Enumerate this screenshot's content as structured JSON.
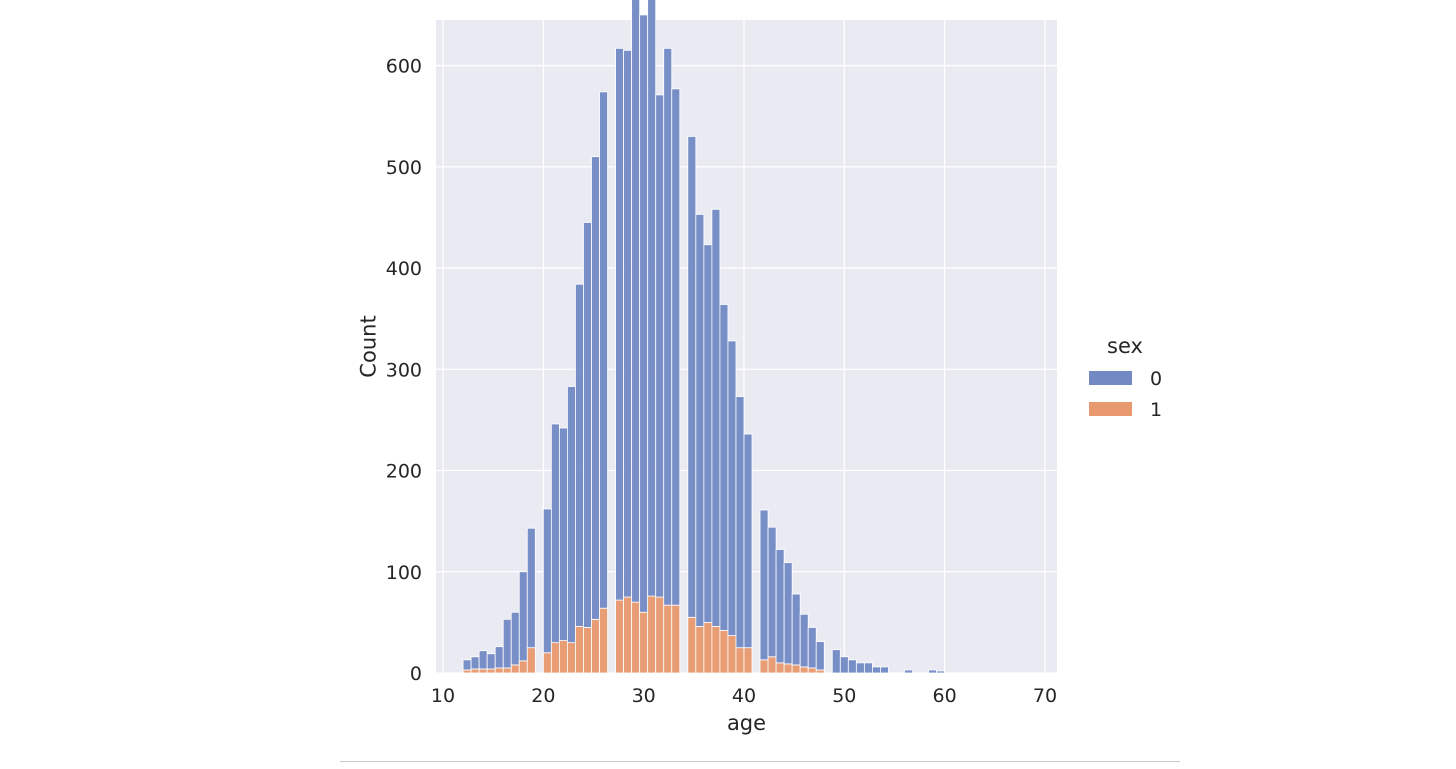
{
  "chart_data": {
    "type": "bar",
    "stacked": true,
    "xlabel": "age",
    "ylabel": "Count",
    "xlim": [
      9.3,
      71.2
    ],
    "ylim": [
      0,
      645
    ],
    "xticks": [
      10,
      20,
      30,
      40,
      50,
      60,
      70
    ],
    "yticks": [
      0,
      100,
      200,
      300,
      400,
      500,
      600
    ],
    "grid": true,
    "bin_start": 12,
    "bin_width": 0.8,
    "legend": {
      "title": "sex",
      "placement": "right",
      "entries": [
        {
          "label": "0",
          "color": "#7289c4"
        },
        {
          "label": "1",
          "color": "#e9996e"
        }
      ]
    },
    "series": [
      {
        "name": "1",
        "color": "#e9996e",
        "values": [
          3,
          4,
          4,
          4,
          5,
          5,
          8,
          12,
          25,
          0,
          20,
          30,
          32,
          30,
          46,
          45,
          53,
          64,
          0,
          72,
          75,
          70,
          60,
          76,
          75,
          67,
          67,
          0,
          55,
          46,
          50,
          46,
          42,
          37,
          25,
          25,
          0,
          13,
          16,
          10,
          9,
          8,
          6,
          5,
          3,
          0,
          0,
          0,
          0,
          0,
          0,
          0,
          0,
          0,
          0,
          0,
          0,
          0,
          0,
          0,
          0,
          0,
          0,
          0,
          0,
          0,
          0,
          0,
          0,
          0,
          0,
          0,
          0,
          0
        ]
      },
      {
        "name": "0",
        "color": "#7289c4",
        "values": [
          10,
          12,
          18,
          15,
          21,
          48,
          52,
          88,
          118,
          0,
          142,
          216,
          210,
          253,
          338,
          400,
          457,
          510,
          0,
          545,
          540,
          596,
          590,
          614,
          496,
          550,
          510,
          0,
          475,
          407,
          373,
          412,
          322,
          291,
          248,
          211,
          0,
          148,
          128,
          112,
          100,
          70,
          52,
          40,
          28,
          0,
          23,
          16,
          13,
          10,
          10,
          6,
          6,
          0,
          0,
          3,
          0,
          0,
          3,
          2,
          0,
          0,
          0,
          0,
          0,
          0,
          0,
          0,
          0,
          0,
          0,
          0,
          0,
          0
        ]
      }
    ]
  }
}
